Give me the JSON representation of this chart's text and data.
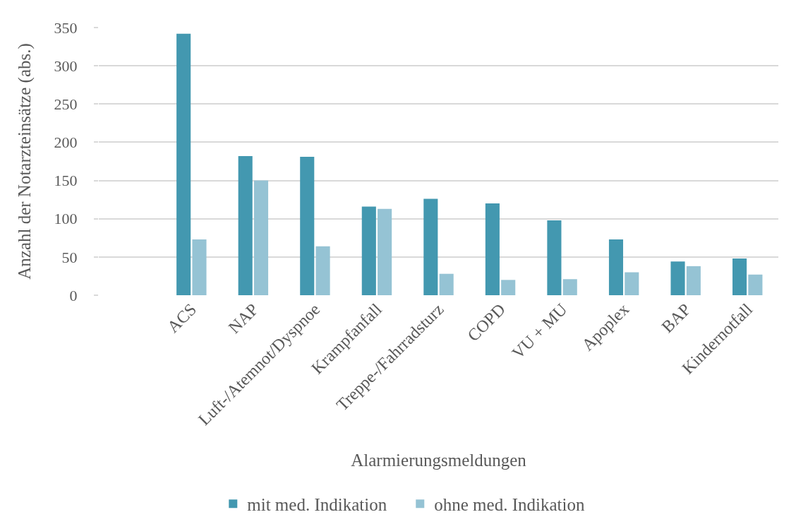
{
  "chart_data": {
    "type": "bar",
    "xlabel": "Alarmierungsmeldungen",
    "ylabel": "Anzahl der Notarzteinsätze (abs.)",
    "categories": [
      null,
      "ACS",
      "NAP",
      "Luft-/Atemnot/Dyspnoe",
      "Krampfanfall",
      "Treppe-/Fahrradsturz",
      "COPD",
      "VU + MU",
      "Apoplex",
      "BAP",
      "Kindernotfall"
    ],
    "series": [
      {
        "name": "mit med. Indikation",
        "color": "#4398b0",
        "values": [
          null,
          342,
          182,
          181,
          116,
          126,
          120,
          98,
          73,
          44,
          48
        ]
      },
      {
        "name": "ohne med. Indikation",
        "color": "#95c3d4",
        "values": [
          null,
          73,
          150,
          64,
          113,
          28,
          20,
          21,
          30,
          38,
          27
        ]
      }
    ],
    "ylim": [
      0,
      350
    ],
    "yticks": [
      0,
      50,
      100,
      150,
      200,
      250,
      300,
      350
    ],
    "grid": "y",
    "legend": "bottom"
  }
}
